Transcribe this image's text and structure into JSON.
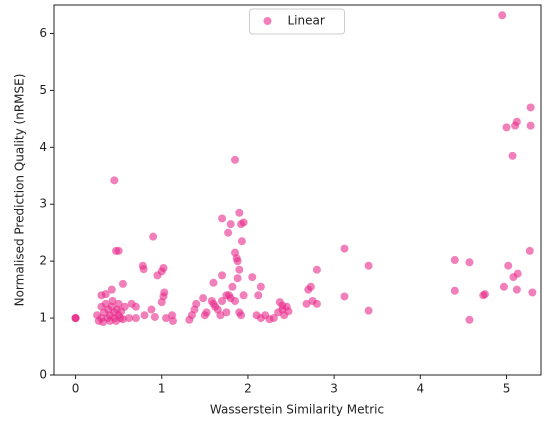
{
  "chart_data": {
    "type": "scatter",
    "xlabel": "Wasserstein Similarity Metric",
    "ylabel": "Normalised Prediction Quality (nRMSE)",
    "xlim": [
      -0.25,
      5.4
    ],
    "ylim": [
      0,
      6.5
    ],
    "xticks": [
      0,
      1,
      2,
      3,
      4,
      5
    ],
    "yticks": [
      0,
      1,
      2,
      3,
      4,
      5,
      6
    ],
    "legend": "upper center",
    "series": [
      {
        "name": "Linear",
        "color": "#e7298a",
        "x": [
          0,
          0,
          0,
          0.3,
          0.35,
          0.42,
          0.45,
          0.47,
          0.5,
          0.55,
          0.62,
          0.7,
          0.78,
          0.79,
          0.8,
          0.9,
          0.92,
          0.95,
          1.0,
          1.02,
          1.03,
          1.02,
          1.0,
          0.88,
          1.05,
          1.12,
          1.13,
          1.32,
          1.35,
          1.38,
          1.4,
          1.48,
          1.5,
          1.52,
          1.58,
          1.6,
          1.6,
          1.62,
          1.65,
          1.68,
          1.7,
          1.7,
          1.75,
          1.77,
          1.8,
          1.82,
          1.85,
          1.85,
          1.87,
          1.88,
          1.9,
          1.9,
          1.92,
          1.93,
          1.95,
          1.88,
          1.8,
          1.85,
          1.9,
          1.92,
          1.75,
          1.7,
          1.95,
          1.78,
          2.05,
          2.1,
          2.12,
          2.15,
          2.15,
          2.2,
          2.25,
          2.3,
          2.35,
          2.37,
          2.4,
          2.42,
          2.45,
          2.47,
          2.4,
          2.68,
          2.7,
          2.73,
          2.75,
          2.8,
          2.8,
          3.12,
          3.12,
          3.4,
          3.4,
          4.4,
          4.4,
          4.57,
          4.57,
          4.75,
          4.73,
          4.95,
          4.97,
          5.0,
          5.02,
          5.07,
          5.08,
          5.1,
          5.12,
          5.12,
          5.13,
          5.28,
          5.28,
          5.27,
          5.3,
          0.25,
          0.27,
          0.3,
          0.3,
          0.32,
          0.33,
          0.35,
          0.37,
          0.38,
          0.4,
          0.4,
          0.42,
          0.43,
          0.45,
          0.45,
          0.47,
          0.48,
          0.5,
          0.5,
          0.52,
          0.53,
          0.55,
          0.57,
          0.65,
          0.7
        ],
        "values": [
          1,
          1,
          1,
          1.4,
          1.42,
          1.5,
          3.42,
          2.18,
          2.18,
          1.6,
          1.0,
          1.2,
          1.92,
          1.86,
          1.05,
          2.43,
          1.02,
          1.75,
          1.82,
          1.88,
          1.45,
          1.38,
          1.28,
          1.15,
          1.0,
          1.05,
          0.95,
          0.97,
          1.05,
          1.15,
          1.25,
          1.35,
          1.05,
          1.1,
          1.3,
          1.62,
          1.25,
          1.2,
          1.15,
          1.05,
          1.75,
          2.75,
          1.4,
          2.5,
          2.65,
          1.55,
          3.78,
          2.15,
          2.05,
          2.0,
          2.85,
          1.85,
          2.65,
          2.35,
          2.68,
          1.7,
          1.35,
          1.3,
          1.1,
          1.05,
          1.1,
          1.3,
          1.4,
          1.4,
          1.72,
          1.05,
          1.4,
          1.55,
          1.0,
          1.05,
          0.98,
          1.0,
          1.1,
          1.28,
          1.15,
          1.05,
          1.2,
          1.12,
          1.22,
          1.25,
          1.5,
          1.55,
          1.3,
          1.85,
          1.25,
          2.22,
          1.38,
          1.92,
          1.13,
          2.02,
          1.48,
          1.98,
          0.97,
          1.42,
          1.4,
          6.32,
          1.55,
          4.35,
          1.92,
          3.85,
          1.72,
          4.38,
          4.45,
          1.5,
          1.78,
          4.7,
          4.38,
          2.18,
          1.45,
          1.05,
          0.95,
          1.2,
          1.0,
          0.93,
          1.1,
          1.25,
          1.0,
          1.15,
          0.95,
          1.05,
          1.2,
          1.3,
          1.0,
          1.1,
          0.95,
          1.15,
          1.05,
          1.25,
          1.0,
          1.12,
          0.98,
          1.2,
          1.25,
          1.0
        ]
      }
    ]
  }
}
